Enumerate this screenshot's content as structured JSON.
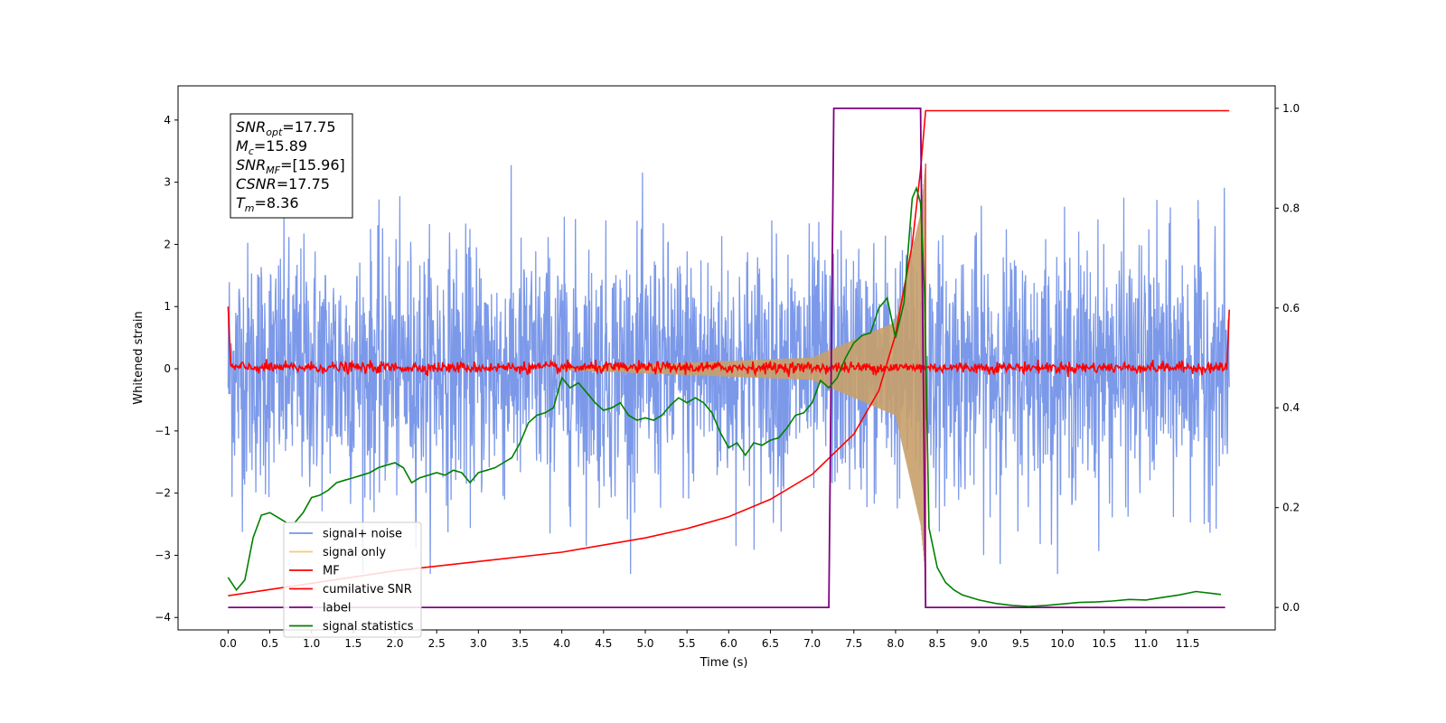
{
  "chart_data": {
    "type": "line",
    "title": "",
    "xlabel": "Time (s)",
    "ylabel": "Whitened strain",
    "y2label": "",
    "xlim": [
      -0.6,
      12.55
    ],
    "ylim": [
      -4.2,
      4.55
    ],
    "y2lim": [
      -0.045,
      1.045
    ],
    "x_ticks": [
      0.0,
      0.5,
      1.0,
      1.5,
      2.0,
      2.5,
      3.0,
      3.5,
      4.0,
      4.5,
      5.0,
      5.5,
      6.0,
      6.5,
      7.0,
      7.5,
      8.0,
      8.5,
      9.0,
      9.5,
      10.0,
      10.5,
      11.0,
      11.5
    ],
    "x_tick_labels": [
      "0.0",
      "0.5",
      "1.0",
      "1.5",
      "2.0",
      "2.5",
      "3.0",
      "3.5",
      "4.0",
      "4.5",
      "5.0",
      "5.5",
      "6.0",
      "6.5",
      "7.0",
      "7.5",
      "8.0",
      "8.5",
      "9.0",
      "9.5",
      "10.0",
      "10.5",
      "11.0",
      "11.5"
    ],
    "y_ticks": [
      -4,
      -3,
      -2,
      -1,
      0,
      1,
      2,
      3,
      4
    ],
    "y_tick_labels": [
      "−4",
      "−3",
      "−2",
      "−1",
      "0",
      "1",
      "2",
      "3",
      "4"
    ],
    "y2_ticks": [
      0.0,
      0.2,
      0.4,
      0.6,
      0.8,
      1.0
    ],
    "y2_tick_labels": [
      "0.0",
      "0.2",
      "0.4",
      "0.6",
      "0.8",
      "1.0"
    ],
    "grid": false,
    "legend_position": "bottom-left",
    "series": [
      {
        "name": "signal+ noise",
        "axis": "left",
        "color": "#7593e8",
        "description_values": {
          "x_range": [
            0.0,
            12.0
          ],
          "typical_amplitude": 1.0,
          "peak_max": 4.15,
          "peak_min": -3.3
        }
      },
      {
        "name": "signal only",
        "axis": "left",
        "color": "#f5c97a",
        "chirp": {
          "x_start": 4.0,
          "x_merger": 8.36,
          "amplitude_at_4s": 0.02,
          "amplitude_at_7s": 0.18,
          "amplitude_at_8s": 0.75,
          "amplitude_at_8.3s": 2.5
        }
      },
      {
        "name": "MF",
        "axis": "left",
        "color": "#ff0000",
        "description_values": {
          "x_range": [
            0.0,
            12.0
          ],
          "start_value": 1.0,
          "baseline": 0.02,
          "end_value": 0.95
        }
      },
      {
        "name": "cumilative SNR",
        "axis": "left",
        "color": "#ff0000",
        "x": [
          0.0,
          1.0,
          2.0,
          3.0,
          4.0,
          5.0,
          5.5,
          6.0,
          6.5,
          7.0,
          7.5,
          7.8,
          8.0,
          8.2,
          8.3,
          8.36,
          8.4,
          12.0
        ],
        "values": [
          -3.65,
          -3.45,
          -3.25,
          -3.1,
          -2.95,
          -2.72,
          -2.57,
          -2.38,
          -2.1,
          -1.7,
          -1.05,
          -0.35,
          0.55,
          2.0,
          3.2,
          4.15,
          4.15,
          4.15
        ]
      },
      {
        "name": "label",
        "axis": "right",
        "color": "#800080",
        "x": [
          0.0,
          7.2,
          7.26,
          8.3,
          8.36,
          11.95
        ],
        "values": [
          0.0,
          0.0,
          1.0,
          1.0,
          0.0,
          0.0
        ]
      },
      {
        "name": "signal statistics",
        "axis": "right",
        "color": "#008000",
        "x": [
          0.0,
          0.1,
          0.2,
          0.3,
          0.4,
          0.5,
          0.6,
          0.7,
          0.8,
          0.9,
          1.0,
          1.1,
          1.2,
          1.3,
          1.4,
          1.5,
          1.6,
          1.7,
          1.8,
          1.9,
          2.0,
          2.1,
          2.2,
          2.3,
          2.4,
          2.5,
          2.6,
          2.7,
          2.8,
          2.9,
          3.0,
          3.1,
          3.2,
          3.3,
          3.4,
          3.5,
          3.6,
          3.7,
          3.8,
          3.9,
          4.0,
          4.1,
          4.2,
          4.3,
          4.4,
          4.5,
          4.6,
          4.7,
          4.8,
          4.9,
          5.0,
          5.1,
          5.2,
          5.3,
          5.4,
          5.5,
          5.6,
          5.7,
          5.8,
          5.9,
          6.0,
          6.1,
          6.2,
          6.3,
          6.4,
          6.5,
          6.6,
          6.7,
          6.8,
          6.9,
          7.0,
          7.1,
          7.2,
          7.3,
          7.4,
          7.5,
          7.6,
          7.7,
          7.8,
          7.9,
          8.0,
          8.1,
          8.2,
          8.25,
          8.3,
          8.35,
          8.4,
          8.5,
          8.6,
          8.7,
          8.8,
          9.0,
          9.2,
          9.4,
          9.6,
          9.8,
          10.0,
          10.2,
          10.4,
          10.6,
          10.8,
          11.0,
          11.2,
          11.4,
          11.6,
          11.8,
          11.9
        ],
        "values": [
          0.06,
          0.035,
          0.055,
          0.14,
          0.185,
          0.19,
          0.18,
          0.17,
          0.17,
          0.19,
          0.22,
          0.225,
          0.235,
          0.25,
          0.255,
          0.26,
          0.265,
          0.27,
          0.28,
          0.285,
          0.29,
          0.28,
          0.25,
          0.26,
          0.265,
          0.27,
          0.265,
          0.275,
          0.27,
          0.25,
          0.27,
          0.275,
          0.28,
          0.29,
          0.3,
          0.33,
          0.37,
          0.385,
          0.39,
          0.4,
          0.46,
          0.44,
          0.45,
          0.43,
          0.41,
          0.395,
          0.4,
          0.41,
          0.385,
          0.375,
          0.38,
          0.375,
          0.385,
          0.405,
          0.42,
          0.41,
          0.42,
          0.41,
          0.39,
          0.35,
          0.32,
          0.33,
          0.305,
          0.33,
          0.325,
          0.335,
          0.34,
          0.36,
          0.385,
          0.39,
          0.41,
          0.455,
          0.44,
          0.46,
          0.5,
          0.53,
          0.545,
          0.55,
          0.6,
          0.62,
          0.54,
          0.61,
          0.82,
          0.84,
          0.81,
          0.62,
          0.16,
          0.08,
          0.05,
          0.035,
          0.025,
          0.015,
          0.008,
          0.004,
          0.002,
          0.004,
          0.007,
          0.01,
          0.011,
          0.013,
          0.016,
          0.015,
          0.02,
          0.025,
          0.032,
          0.028,
          0.026
        ]
      }
    ]
  },
  "annotation": {
    "lines": [
      {
        "main": "SNR",
        "sub": "opt",
        "rest": "=17.75"
      },
      {
        "main": "M",
        "sub": "c",
        "rest": "=15.89"
      },
      {
        "main": "SNR",
        "sub": "MF",
        "rest": "=[15.96]"
      },
      {
        "main": "CSNR",
        "sub": "",
        "rest": "=17.75"
      },
      {
        "main": "T",
        "sub": "m",
        "rest": "=8.36"
      }
    ]
  }
}
